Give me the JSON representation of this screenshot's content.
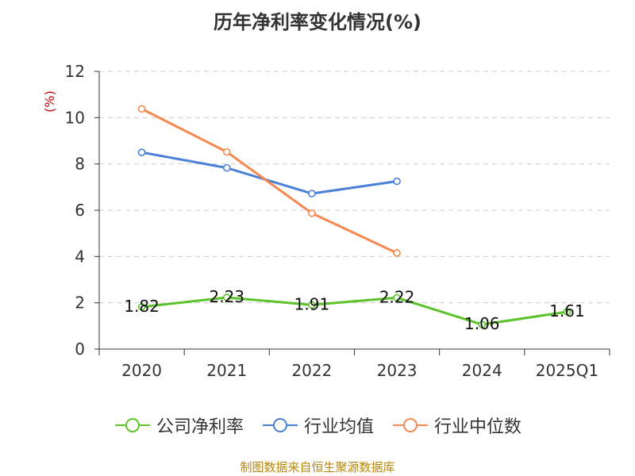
{
  "chart_data": {
    "type": "line",
    "title": "历年净利率变化情况(%)",
    "ylabel": "(%)",
    "categories": [
      "2020",
      "2021",
      "2022",
      "2023",
      "2024",
      "2025Q1"
    ],
    "ylim": [
      0,
      12
    ],
    "yticks": [
      0,
      2,
      4,
      6,
      8,
      10,
      12
    ],
    "grid": true,
    "legend_position": "bottom",
    "series": [
      {
        "name": "公司净利率",
        "color": "#5cc22a",
        "values": [
          1.82,
          2.23,
          1.91,
          2.22,
          1.06,
          1.61
        ],
        "show_labels": true
      },
      {
        "name": "行业均值",
        "color": "#4a7fd9",
        "values": [
          8.5,
          7.83,
          6.72,
          7.25,
          null,
          null
        ],
        "show_labels": false
      },
      {
        "name": "行业中位数",
        "color": "#f5894f",
        "values": [
          10.38,
          8.52,
          5.87,
          4.15,
          null,
          null
        ],
        "show_labels": false
      }
    ]
  },
  "footer": "制图数据来自恒生聚源数据库"
}
